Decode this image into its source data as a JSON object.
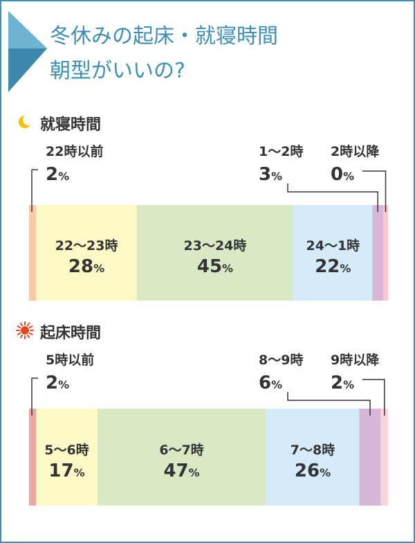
{
  "title": {
    "line1": "冬休みの起床・就寝時間",
    "line2": "朝型がいいの?"
  },
  "colors": {
    "frame": "#3d8fb4",
    "title_text": "#3d8fb4",
    "label_text": "#333333",
    "leader_line": "#333333",
    "moon": "#f2c200",
    "sun": "#e8441c"
  },
  "chart_data": [
    {
      "type": "bar",
      "orientation": "horizontal-stacked-100",
      "title": "就寝時間",
      "icon": "moon-icon",
      "categories": [
        "22時以前",
        "22〜23時",
        "23〜24時",
        "24〜1時",
        "1〜2時",
        "2時以降"
      ],
      "values": [
        2,
        28,
        45,
        22,
        3,
        0
      ],
      "unit": "%",
      "colors": [
        "#f8c9a9",
        "#fdfac8",
        "#d9e8c5",
        "#d5ebf9",
        "#d8b6da",
        "#f7c9cd"
      ],
      "outside_labels": {
        "left": [
          "22時以前"
        ],
        "right": [
          "1〜2時",
          "2時以降"
        ]
      }
    },
    {
      "type": "bar",
      "orientation": "horizontal-stacked-100",
      "title": "起床時間",
      "icon": "sun-icon",
      "categories": [
        "5時以前",
        "5〜6時",
        "6〜7時",
        "7〜8時",
        "8〜9時",
        "9時以降"
      ],
      "values": [
        2,
        17,
        47,
        26,
        6,
        2
      ],
      "unit": "%",
      "colors": [
        "#eda6a6",
        "#fdfac8",
        "#d9e8c5",
        "#d5ebf9",
        "#d8b6da",
        "#f9d4d6"
      ],
      "outside_labels": {
        "left": [
          "5時以前"
        ],
        "right": [
          "8〜9時",
          "9時以降"
        ]
      }
    }
  ]
}
